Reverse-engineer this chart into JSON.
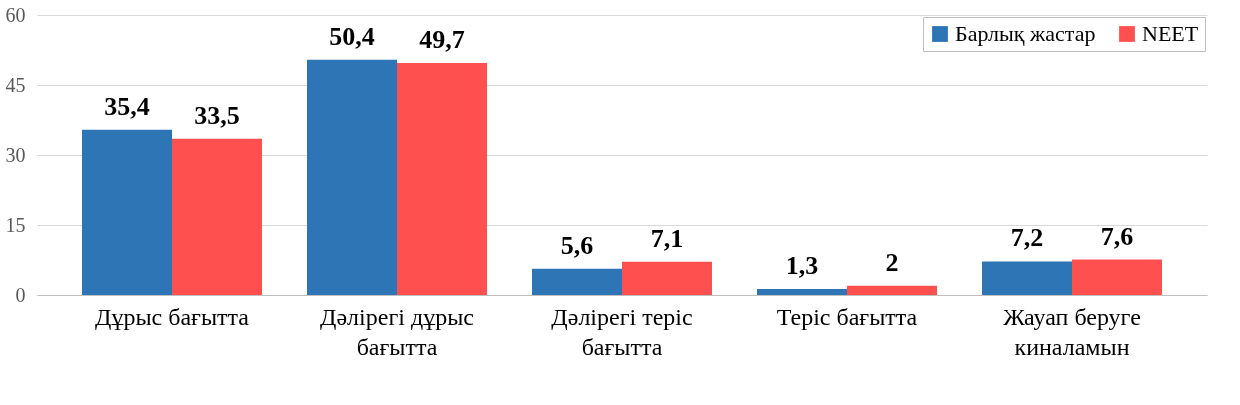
{
  "chart_data": {
    "type": "bar",
    "categories": [
      "Дұрыс бағытта",
      "Дәлірегі дұрыс бағытта",
      "Дәлірегі теріс бағытта",
      "Теріс бағытта",
      "Жауап беруге киналамын"
    ],
    "series": [
      {
        "name": "Барлық жастар",
        "color": "#2e75b6",
        "values": [
          35.4,
          50.4,
          5.6,
          1.3,
          7.2
        ],
        "value_labels": [
          "35,4",
          "50,4",
          "5,6",
          "1,3",
          "7,2"
        ]
      },
      {
        "name": "NEET",
        "color": "#ff5050",
        "values": [
          33.5,
          49.7,
          7.1,
          2,
          7.6
        ],
        "value_labels": [
          "33,5",
          "49,7",
          "7,1",
          "2",
          "7,6"
        ]
      }
    ],
    "ylim": [
      0,
      60
    ],
    "yticks": [
      0,
      15,
      30,
      45,
      60
    ],
    "grid": "y",
    "legend": "top right"
  }
}
